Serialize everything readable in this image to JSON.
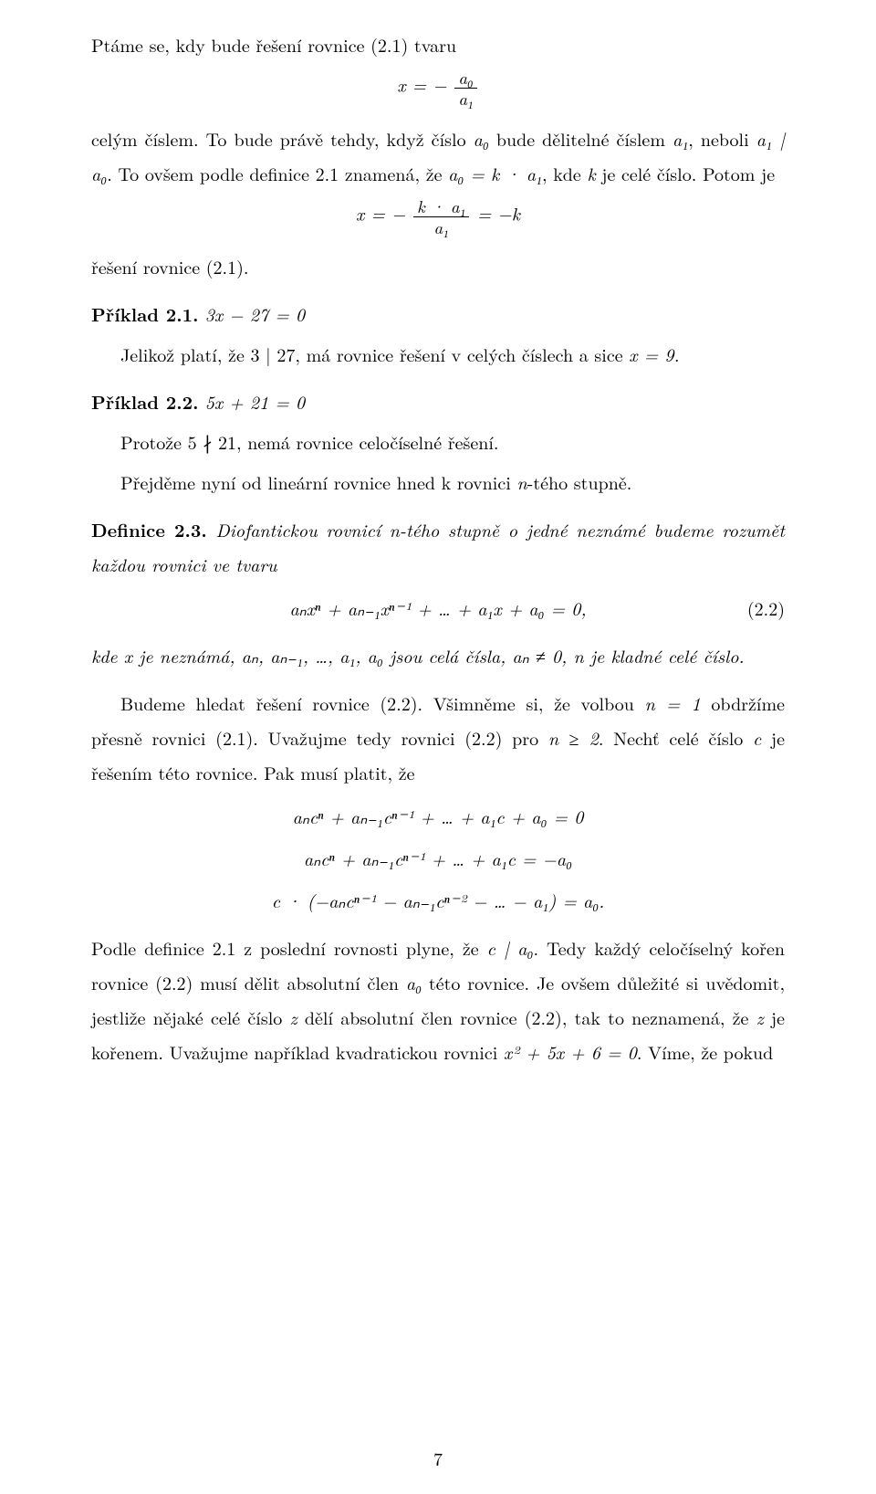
{
  "p1": "Ptáme se, kdy bude řešení rovnice (2.1) tvaru",
  "eq1_lhs": "x = −",
  "eq1_num": "a₀",
  "eq1_den": "a₁",
  "p2a": "celým číslem. To bude právě tehdy, když číslo ",
  "p2b": " bude dělitelné číslem ",
  "p2c": ", neboli ",
  "p2d": ". To ovšem podle definice 2.1 znamená, že ",
  "p2e": ",  kde ",
  "p2f": " je celé číslo. Potom je",
  "a0": "a₀",
  "a1": "a₁",
  "a1_div_a0": "a₁ | a₀",
  "a0_eq_ka1": "a₀ = k · a₁",
  "k": "k",
  "eq2_lhs": "x = −",
  "eq2_num": "k · a₁",
  "eq2_den": "a₁",
  "eq2_rhs": " = −k",
  "p3": "řešení rovnice (2.1).",
  "ex21_label": "Příklad 2.1.",
  "ex21_eq": " 3x − 27 = 0",
  "ex21_body_a": "Jelikož platí, že 3 | 27, má rovnice řešení v celých číslech a sice ",
  "ex21_body_b": "x = 9.",
  "ex22_label": "Příklad 2.2.",
  "ex22_eq": " 5x + 21 = 0",
  "ex22_body": "Protože 5 ∤ 21, nemá rovnice celočíselné řešení.",
  "p4_a": "Přejděme nyní od lineární rovnice hned k rovnici ",
  "p4_b": "n",
  "p4_c": "-tého stupně.",
  "def23_label": "Definice 2.3.",
  "def23_a": " Diofantickou rovnicí n-tého stupně o jedné neznámé budeme rozumět každou rovnici ve tvaru",
  "eq22": "aₙxⁿ + aₙ₋₁xⁿ⁻¹ + … + a₁x + a₀ = 0,",
  "eq22num": "(2.2)",
  "def23_b": "kde x je neznámá, aₙ, aₙ₋₁, …, a₁, a₀ jsou celá čísla, aₙ ≠ 0, n je kladné celé číslo.",
  "p5_a": "Budeme hledat řešení rovnice (2.2). Všimněme si, že volbou ",
  "p5_b": "n = 1",
  "p5_c": " obdržíme přesně rovnici (2.1). Uvažujme tedy rovnici (2.2) pro ",
  "p5_d": "n ≥ 2",
  "p5_e": ". Nechť celé číslo ",
  "p5_f": "c",
  "p5_g": " je řešením této rovnice. Pak musí platit, že",
  "blk1": "aₙcⁿ + aₙ₋₁cⁿ⁻¹ + … + a₁c + a₀ = 0",
  "blk2": "aₙcⁿ + aₙ₋₁cⁿ⁻¹ + … + a₁c = −a₀",
  "blk3": "c · (−aₙcⁿ⁻¹ − aₙ₋₁cⁿ⁻² − … − a₁) = a₀.",
  "p6_a": "Podle definice 2.1 z poslední rovnosti plyne, že ",
  "p6_b": "c | a₀",
  "p6_c": ". Tedy každý celočíselný kořen rovnice (2.2) musí dělit absolutní člen ",
  "p6_d": "a₀",
  "p6_e": " této rovnice. Je ovšem důležité si uvědomit, jestliže nějaké celé číslo ",
  "p6_f": "z",
  "p6_g": " dělí absolutní člen rovnice (2.2), tak to neznamená, že ",
  "p6_h": "z",
  "p6_i": " je kořenem. Uvažujme například kvadratickou rovnici ",
  "p6_j": "x² + 5x + 6 = 0",
  "p6_k": ". Víme, že pokud",
  "pagenum": "7"
}
